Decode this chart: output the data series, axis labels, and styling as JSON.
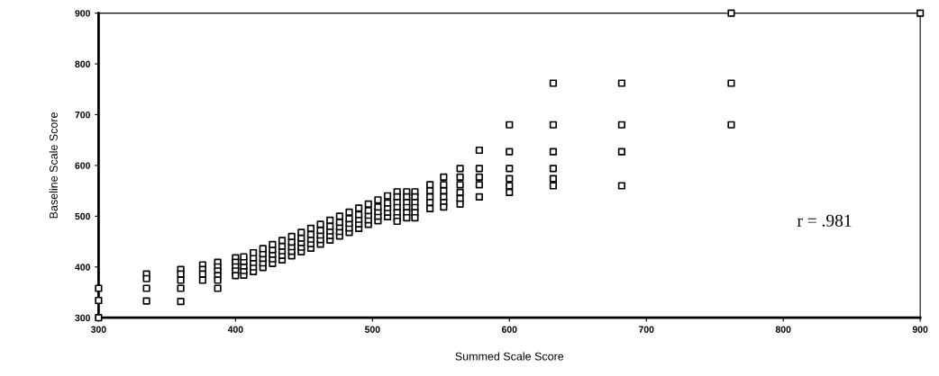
{
  "chart_data": {
    "type": "scatter",
    "xlabel": "Summed Scale Score",
    "ylabel": "Baseline Scale Score",
    "xlim": [
      300,
      900
    ],
    "ylim": [
      300,
      900
    ],
    "xticks": [
      300,
      400,
      500,
      600,
      700,
      800,
      900
    ],
    "yticks": [
      300,
      400,
      500,
      600,
      700,
      800,
      900
    ],
    "grid": false,
    "marker": "square",
    "annotations": [
      "r = .981"
    ],
    "series": [
      {
        "color": "#000000",
        "x": [
          300,
          300,
          300,
          335,
          335,
          335,
          335,
          360,
          360,
          360,
          360,
          360,
          376,
          376,
          376,
          376,
          387,
          387,
          387,
          387,
          387,
          387,
          400,
          400,
          400,
          400,
          400,
          406,
          406,
          406,
          406,
          406,
          413,
          413,
          413,
          413,
          413,
          420,
          420,
          420,
          420,
          420,
          427,
          427,
          427,
          427,
          427,
          434,
          434,
          434,
          434,
          434,
          441,
          441,
          441,
          441,
          441,
          448,
          448,
          448,
          448,
          448,
          455,
          455,
          455,
          455,
          455,
          462,
          462,
          462,
          462,
          462,
          469,
          469,
          469,
          469,
          469,
          476,
          476,
          476,
          476,
          476,
          483,
          483,
          483,
          483,
          483,
          490,
          490,
          490,
          490,
          490,
          497,
          497,
          497,
          497,
          497,
          504,
          504,
          504,
          504,
          504,
          511,
          511,
          511,
          511,
          511,
          518,
          518,
          518,
          518,
          518,
          518,
          518,
          525,
          525,
          525,
          525,
          525,
          525,
          531,
          531,
          531,
          531,
          531,
          531,
          542,
          542,
          542,
          542,
          542,
          552,
          552,
          552,
          552,
          552,
          552,
          564,
          564,
          564,
          564,
          564,
          564,
          578,
          578,
          578,
          578,
          578,
          600,
          600,
          600,
          600,
          600,
          600,
          632,
          632,
          632,
          632,
          632,
          632,
          682,
          682,
          682,
          682,
          762,
          762,
          762,
          900
        ],
        "values": [
          358,
          334,
          300,
          386,
          377,
          358,
          333,
          395,
          386,
          374,
          358,
          332,
          404,
          395,
          386,
          374,
          409,
          400,
          392,
          383,
          374,
          358,
          418,
          409,
          400,
          392,
          383,
          384,
          393,
          402,
          411,
          420,
          391,
          400,
          409,
          418,
          428,
          399,
          408,
          417,
          426,
          436,
          407,
          416,
          425,
          434,
          444,
          414,
          423,
          432,
          441,
          452,
          422,
          431,
          440,
          449,
          460,
          430,
          439,
          448,
          457,
          468,
          437,
          446,
          455,
          464,
          476,
          445,
          454,
          463,
          472,
          484,
          453,
          462,
          471,
          480,
          492,
          461,
          470,
          479,
          488,
          500,
          468,
          477,
          486,
          495,
          508,
          476,
          485,
          494,
          503,
          516,
          484,
          493,
          502,
          511,
          524,
          491,
          500,
          509,
          518,
          532,
          499,
          508,
          517,
          526,
          540,
          548,
          538,
          527,
          517,
          507,
          497,
          490,
          548,
          538,
          527,
          517,
          507,
          497,
          548,
          538,
          527,
          517,
          507,
          497,
          562,
          550,
          538,
          527,
          515,
          577,
          562,
          550,
          538,
          527,
          518,
          594,
          577,
          562,
          547,
          535,
          524,
          630,
          594,
          577,
          562,
          538,
          680,
          627,
          594,
          574,
          560,
          547,
          762,
          680,
          627,
          594,
          574,
          560,
          762,
          680,
          627,
          560,
          900,
          762,
          680,
          900
        ]
      }
    ]
  }
}
